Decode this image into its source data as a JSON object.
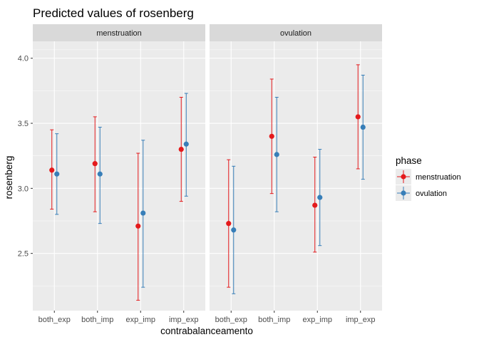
{
  "chart_data": {
    "type": "scatter",
    "title": "Predicted values of rosenberg",
    "xlabel": "contrabalanceamento",
    "ylabel": "rosenberg",
    "ylim": [
      2.06,
      4.13
    ],
    "yticks": [
      2.5,
      3.0,
      3.5,
      4.0
    ],
    "ytick_labels": [
      "2.5",
      "3.0",
      "3.5",
      "4.0"
    ],
    "categories": [
      "both_exp",
      "both_imp",
      "exp_imp",
      "imp_exp"
    ],
    "grid": true,
    "legend": {
      "title": "phase",
      "placement": "right"
    },
    "panels": [
      {
        "label": "menstruation",
        "series": [
          {
            "name": "menstruation",
            "color": "#E41A1C",
            "values": [
              3.14,
              3.19,
              2.71,
              3.3
            ],
            "lower": [
              2.84,
              2.82,
              2.14,
              2.9
            ],
            "upper": [
              3.45,
              3.55,
              3.27,
              3.7
            ]
          },
          {
            "name": "ovulation",
            "color": "#377EB8",
            "values": [
              3.11,
              3.11,
              2.81,
              3.34
            ],
            "lower": [
              2.8,
              2.73,
              2.24,
              2.94
            ],
            "upper": [
              3.42,
              3.47,
              3.37,
              3.73
            ]
          }
        ]
      },
      {
        "label": "ovulation",
        "series": [
          {
            "name": "menstruation",
            "color": "#E41A1C",
            "values": [
              2.73,
              3.4,
              2.87,
              3.55
            ],
            "lower": [
              2.24,
              2.96,
              2.51,
              3.15
            ],
            "upper": [
              3.22,
              3.84,
              3.24,
              3.95
            ]
          },
          {
            "name": "ovulation",
            "color": "#377EB8",
            "values": [
              2.68,
              3.26,
              2.93,
              3.47
            ],
            "lower": [
              2.19,
              2.82,
              2.56,
              3.07
            ],
            "upper": [
              3.17,
              3.7,
              3.3,
              3.87
            ]
          }
        ]
      }
    ]
  }
}
